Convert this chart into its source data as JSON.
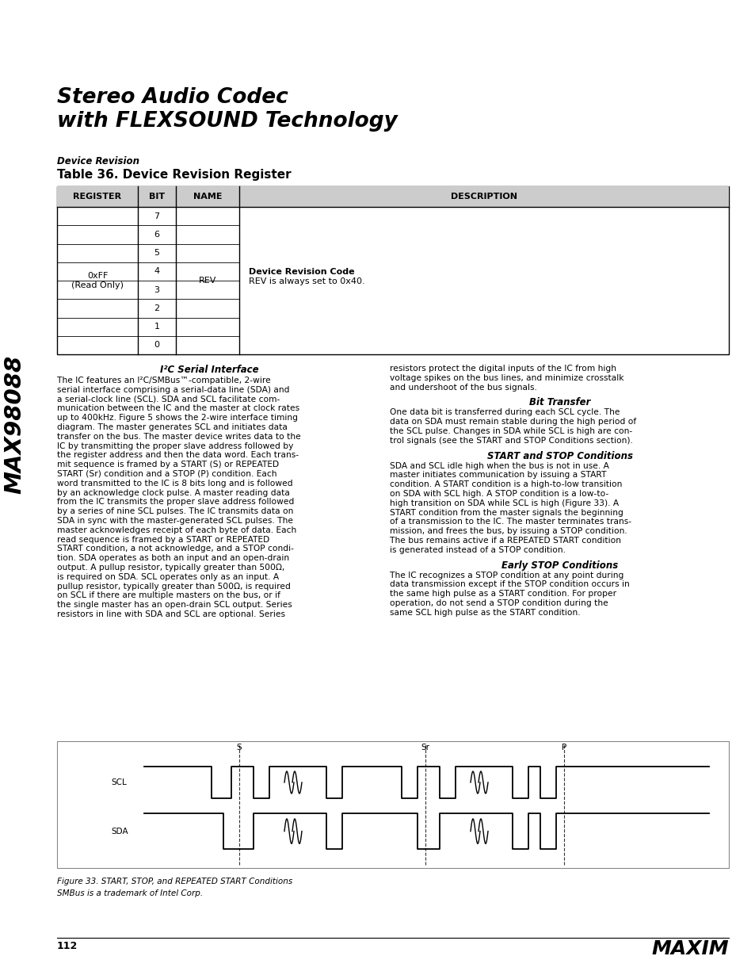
{
  "title_line1": "Stereo Audio Codec",
  "title_line2": "with FLEXSOUND Technology",
  "section_label": "Device Revision",
  "table_title": "Table 36. Device Revision Register",
  "table_headers": [
    "REGISTER",
    "BIT",
    "NAME",
    "DESCRIPTION"
  ],
  "table_register": "0xFF\n(Read Only)",
  "table_bits": [
    "7",
    "6",
    "5",
    "4",
    "3",
    "2",
    "1",
    "0"
  ],
  "table_name": "REV",
  "table_desc_bold": "Device Revision Code",
  "table_desc_normal": "REV is always set to 0x40.",
  "sidebar_text": "MAX98088",
  "left_col_heading": "I²C Serial Interface",
  "left_col_lines": [
    "The IC features an I²C/SMBus™-compatible, 2-wire",
    "serial interface comprising a serial-data line (SDA) and",
    "a serial-clock line (SCL). SDA and SCL facilitate com-",
    "munication between the IC and the master at clock rates",
    "up to 400kHz. Figure 5 shows the 2-wire interface timing",
    "diagram. The master generates SCL and initiates data",
    "transfer on the bus. The master device writes data to the",
    "IC by transmitting the proper slave address followed by",
    "the register address and then the data word. Each trans-",
    "mit sequence is framed by a START (S) or REPEATED",
    "START (Sr) condition and a STOP (P) condition. Each",
    "word transmitted to the IC is 8 bits long and is followed",
    "by an acknowledge clock pulse. A master reading data",
    "from the IC transmits the proper slave address followed",
    "by a series of nine SCL pulses. The IC transmits data on",
    "SDA in sync with the master-generated SCL pulses. The",
    "master acknowledges receipt of each byte of data. Each",
    "read sequence is framed by a START or REPEATED",
    "START condition, a not acknowledge, and a STOP condi-",
    "tion. SDA operates as both an input and an open-drain",
    "output. A pullup resistor, typically greater than 500Ω,",
    "is required on SDA. SCL operates only as an input. A",
    "pullup resistor, typically greater than 500Ω, is required",
    "on SCL if there are multiple masters on the bus, or if",
    "the single master has an open-drain SCL output. Series",
    "resistors in line with SDA and SCL are optional. Series"
  ],
  "right_top_lines": [
    "resistors protect the digital inputs of the IC from high",
    "voltage spikes on the bus lines, and minimize crosstalk",
    "and undershoot of the bus signals."
  ],
  "right_col_heading1": "Bit Transfer",
  "right_col_lines1": [
    "One data bit is transferred during each SCL cycle. The",
    "data on SDA must remain stable during the high period of",
    "the SCL pulse. Changes in SDA while SCL is high are con-",
    "trol signals (see the START and STOP Conditions section)."
  ],
  "right_col_heading2": "START and STOP Conditions",
  "right_col_lines2": [
    "SDA and SCL idle high when the bus is not in use. A",
    "master initiates communication by issuing a START",
    "condition. A START condition is a high-to-low transition",
    "on SDA with SCL high. A STOP condition is a low-to-",
    "high transition on SDA while SCL is high (Figure 33). A",
    "START condition from the master signals the beginning",
    "of a transmission to the IC. The master terminates trans-",
    "mission, and frees the bus, by issuing a STOP condition.",
    "The bus remains active if a REPEATED START condition",
    "is generated instead of a STOP condition."
  ],
  "right_col_heading3": "Early STOP Conditions",
  "right_col_lines3": [
    "The IC recognizes a STOP condition at any point during",
    "data transmission except if the STOP condition occurs in",
    "the same high pulse as a START condition. For proper",
    "operation, do not send a STOP condition during the",
    "same SCL high pulse as the START condition."
  ],
  "fig_caption_line1": "Figure 33. START, STOP, and REPEATED START Conditions",
  "fig_caption_line2": "SMBus is a trademark of Intel Corp.",
  "page_number": "112",
  "bg_color": "#ffffff",
  "text_color": "#000000"
}
